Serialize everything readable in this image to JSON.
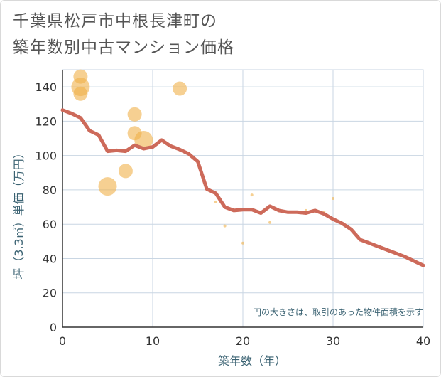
{
  "chart_data": {
    "type": "scatter",
    "title_line1": "千葉県松戸市中根長津町の",
    "title_line2": "築年数別中古マンション価格",
    "xlabel": "築年数（年）",
    "ylabel": "坪（3.3㎡）単価（万円）",
    "xlim": [
      0,
      40
    ],
    "ylim": [
      0,
      150
    ],
    "xticks": [
      0,
      10,
      20,
      30,
      40
    ],
    "yticks": [
      0,
      20,
      40,
      60,
      80,
      100,
      120,
      140
    ],
    "grid": true,
    "note": "円の大きさは、取引のあった物件面積を示す",
    "colors": {
      "bubble": "#f0b14a",
      "line": "#cd6a5a",
      "grid": "#c9d6e3",
      "axis": "#333333"
    },
    "points": [
      {
        "x": 2,
        "y": 146,
        "size": 10
      },
      {
        "x": 2,
        "y": 140,
        "size": 13
      },
      {
        "x": 2,
        "y": 136,
        "size": 10
      },
      {
        "x": 5,
        "y": 82,
        "size": 13
      },
      {
        "x": 7,
        "y": 91,
        "size": 10
      },
      {
        "x": 8,
        "y": 124,
        "size": 10
      },
      {
        "x": 8,
        "y": 113,
        "size": 10
      },
      {
        "x": 9,
        "y": 109,
        "size": 13
      },
      {
        "x": 13,
        "y": 139,
        "size": 10
      },
      {
        "x": 17,
        "y": 73,
        "size": 2
      },
      {
        "x": 18,
        "y": 59,
        "size": 2
      },
      {
        "x": 20,
        "y": 49,
        "size": 2
      },
      {
        "x": 21,
        "y": 77,
        "size": 2
      },
      {
        "x": 23,
        "y": 61,
        "size": 2
      },
      {
        "x": 27,
        "y": 68,
        "size": 2
      },
      {
        "x": 29,
        "y": 67,
        "size": 2
      },
      {
        "x": 30,
        "y": 75,
        "size": 2
      }
    ],
    "trend": {
      "x": [
        0,
        1,
        2,
        3,
        4,
        5,
        6,
        7,
        8,
        9,
        10,
        11,
        12,
        13,
        14,
        15,
        16,
        17,
        18,
        19,
        20,
        21,
        22,
        23,
        24,
        25,
        26,
        27,
        28,
        29,
        30,
        31,
        32,
        33,
        34,
        35,
        36,
        37,
        38,
        39,
        40
      ],
      "y": [
        126.5,
        124.5,
        122,
        114.5,
        112,
        102.5,
        103,
        102.5,
        106,
        104,
        105,
        109,
        105.5,
        103.5,
        101,
        96.5,
        80.5,
        78,
        70,
        68,
        68.5,
        68.5,
        66.5,
        70.5,
        68,
        67,
        67,
        66.5,
        68,
        66,
        63,
        60.5,
        57,
        51,
        49,
        47,
        45,
        43,
        41,
        38.5,
        36
      ]
    }
  }
}
